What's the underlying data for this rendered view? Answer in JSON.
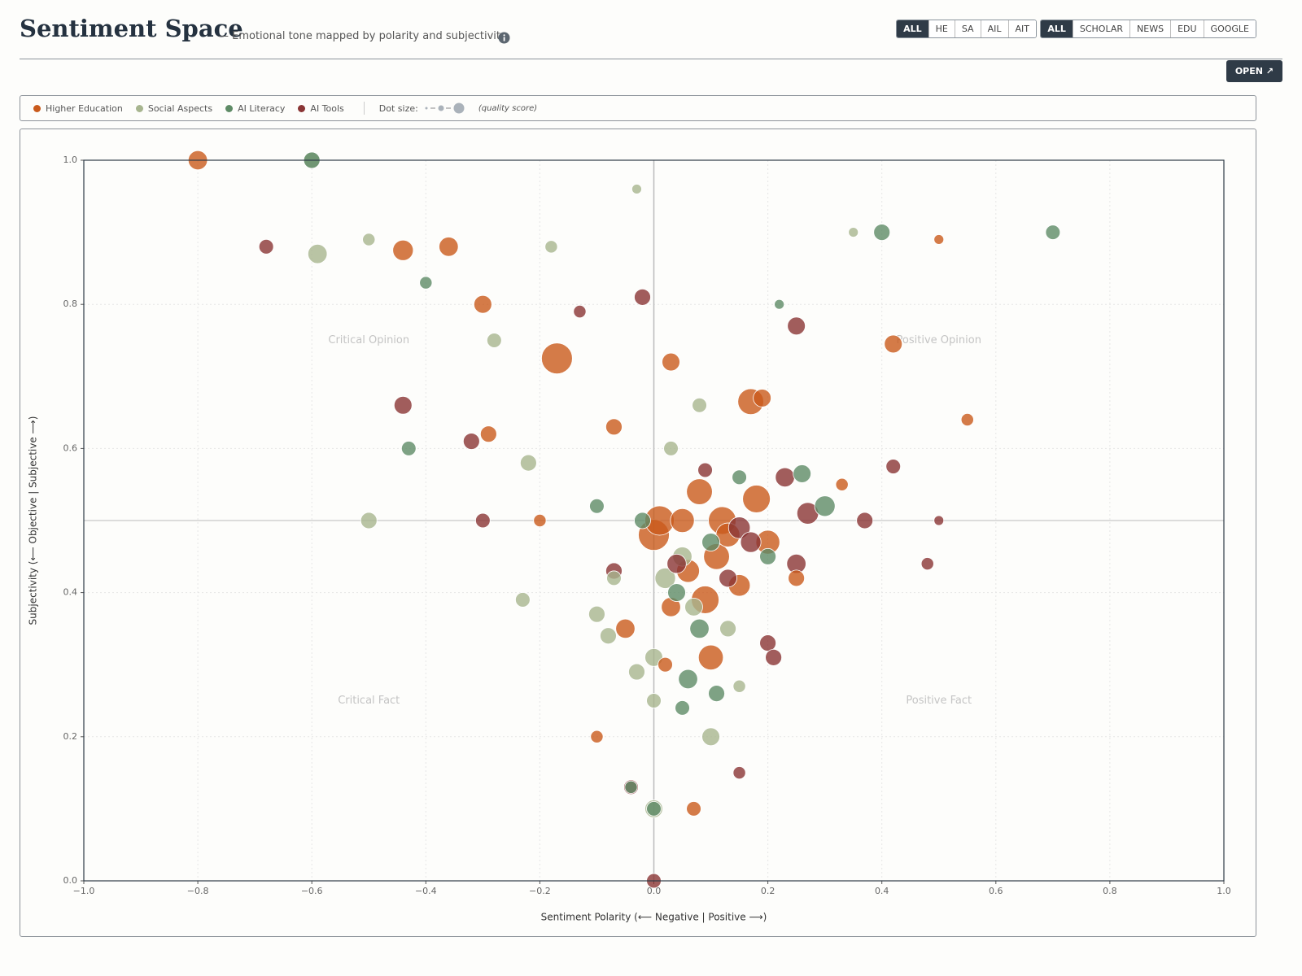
{
  "header": {
    "title": "Sentiment Space",
    "subtitle": "— Emotional tone mapped by polarity and subjectivity"
  },
  "toolbar": {
    "groups": [
      {
        "buttons": [
          "ALL",
          "HE",
          "SA",
          "AIL",
          "AIT"
        ],
        "active": "ALL"
      },
      {
        "buttons": [
          "ALL",
          "SCHOLAR",
          "NEWS",
          "EDU",
          "GOOGLE"
        ],
        "active": "ALL"
      }
    ],
    "open": "OPEN ↗"
  },
  "legend": {
    "size_label": "Dot size:",
    "size_note": "(quality score)"
  },
  "chart_data": {
    "type": "scatter",
    "xlabel": "Sentiment Polarity (⟵ Negative | Positive ⟶)",
    "ylabel": "Subjectivity (⟵ Objective | Subjective ⟶)",
    "annotations": [
      "Critical Opinion",
      "Positive Opinion",
      "Critical Fact",
      "Positive Fact"
    ],
    "xlim": [
      -1,
      1
    ],
    "ylim": [
      0,
      1
    ],
    "grid": true,
    "xticks": [
      {
        "value": -1,
        "label": "−1.0"
      },
      {
        "value": -0.8,
        "label": "−0.8"
      },
      {
        "value": -0.6,
        "label": "−0.6"
      },
      {
        "value": -0.4,
        "label": "−0.4"
      },
      {
        "value": -0.2,
        "label": "−0.2"
      },
      {
        "value": 0,
        "label": "0.0"
      },
      0.2,
      0.4,
      0.6,
      0.8,
      {
        "value": 1,
        "label": "1.0"
      }
    ],
    "yticks": [
      {
        "value": 0,
        "label": "0.0"
      },
      0.2,
      0.4,
      0.6,
      0.8,
      {
        "value": 1,
        "label": "1.0"
      }
    ],
    "series": [
      {
        "name": "Higher Education",
        "color": "#c95a1c",
        "x": [
          -0.8,
          -0.44,
          -0.36,
          -0.17,
          -0.3,
          -0.05,
          0.0,
          0.03,
          0.01,
          0.05,
          0.08,
          0.12,
          0.17,
          0.18,
          0.09,
          0.11,
          0.15,
          0.2,
          0.06,
          0.1,
          -0.07,
          0.03,
          0.42,
          0.55,
          0.19,
          -0.29,
          0.13,
          0.07,
          -0.1,
          0.25,
          0.02,
          -0.2,
          0.33,
          0.5
        ],
        "values": [
          1.0,
          0.875,
          0.88,
          0.725,
          0.8,
          0.35,
          0.48,
          0.72,
          0.5,
          0.5,
          0.54,
          0.5,
          0.665,
          0.53,
          0.39,
          0.45,
          0.41,
          0.47,
          0.43,
          0.31,
          0.63,
          0.38,
          0.745,
          0.64,
          0.67,
          0.62,
          0.48,
          0.1,
          0.2,
          0.42,
          0.3,
          0.5,
          0.55,
          0.89
        ],
        "sizes": [
          6,
          7,
          6,
          18,
          5,
          6,
          18,
          5,
          16,
          10,
          12,
          14,
          12,
          14,
          14,
          12,
          8,
          10,
          9,
          11,
          4,
          6,
          5,
          2,
          5,
          4,
          10,
          3,
          2,
          4,
          3,
          2,
          2,
          1
        ]
      },
      {
        "name": "Social Aspects",
        "color": "#a7b58f",
        "x": [
          -0.6,
          -0.59,
          -0.5,
          -0.5,
          -0.28,
          -0.23,
          -0.22,
          -0.18,
          -0.1,
          -0.07,
          0.0,
          0.0,
          0.02,
          -0.03,
          0.05,
          0.1,
          0.07,
          0.13,
          0.0,
          0.03,
          -0.08,
          0.35,
          0.15,
          -0.03,
          0.08
        ],
        "values": [
          1.0,
          0.87,
          0.89,
          0.5,
          0.75,
          0.39,
          0.58,
          0.88,
          0.37,
          0.42,
          0.1,
          0.31,
          0.42,
          0.29,
          0.45,
          0.2,
          0.38,
          0.35,
          0.25,
          0.6,
          0.34,
          0.9,
          0.27,
          0.96,
          0.66
        ],
        "sizes": [
          4,
          6,
          2,
          4,
          3,
          3,
          4,
          2,
          4,
          3,
          5,
          5,
          7,
          4,
          6,
          5,
          5,
          4,
          3,
          3,
          4,
          1,
          2,
          1,
          3
        ]
      },
      {
        "name": "AI Literacy",
        "color": "#5e8b66",
        "x": [
          -0.6,
          -0.43,
          -0.4,
          0.4,
          0.7,
          0.26,
          0.3,
          0.06,
          0.11,
          0.1,
          -0.02,
          0.04,
          -0.1,
          0.0,
          0.08,
          0.2,
          0.15,
          -0.04,
          0.05,
          0.22
        ],
        "values": [
          1.0,
          0.6,
          0.83,
          0.9,
          0.9,
          0.565,
          0.52,
          0.28,
          0.26,
          0.47,
          0.5,
          0.4,
          0.52,
          0.1,
          0.35,
          0.45,
          0.56,
          0.13,
          0.24,
          0.8
        ],
        "sizes": [
          4,
          3,
          2,
          4,
          3,
          5,
          7,
          6,
          4,
          5,
          4,
          5,
          3,
          3,
          6,
          4,
          3,
          2,
          3,
          1
        ]
      },
      {
        "name": "AI Tools",
        "color": "#8a3535",
        "x": [
          -0.68,
          -0.44,
          -0.32,
          -0.3,
          -0.13,
          -0.02,
          0.25,
          0.27,
          0.25,
          0.17,
          0.13,
          0.2,
          0.23,
          0.37,
          0.42,
          0.48,
          -0.07,
          0.09,
          0.15,
          0.21,
          0.04,
          0.0,
          -0.04,
          0.15,
          0.5
        ],
        "values": [
          0.88,
          0.66,
          0.61,
          0.5,
          0.79,
          0.81,
          0.77,
          0.51,
          0.44,
          0.47,
          0.42,
          0.33,
          0.56,
          0.5,
          0.575,
          0.44,
          0.43,
          0.57,
          0.15,
          0.31,
          0.44,
          0.0,
          0.13,
          0.49,
          0.5
        ],
        "sizes": [
          3,
          5,
          4,
          3,
          2,
          4,
          5,
          8,
          6,
          7,
          5,
          4,
          6,
          4,
          3,
          2,
          4,
          3,
          2,
          4,
          6,
          3,
          3,
          8,
          1
        ]
      }
    ]
  }
}
